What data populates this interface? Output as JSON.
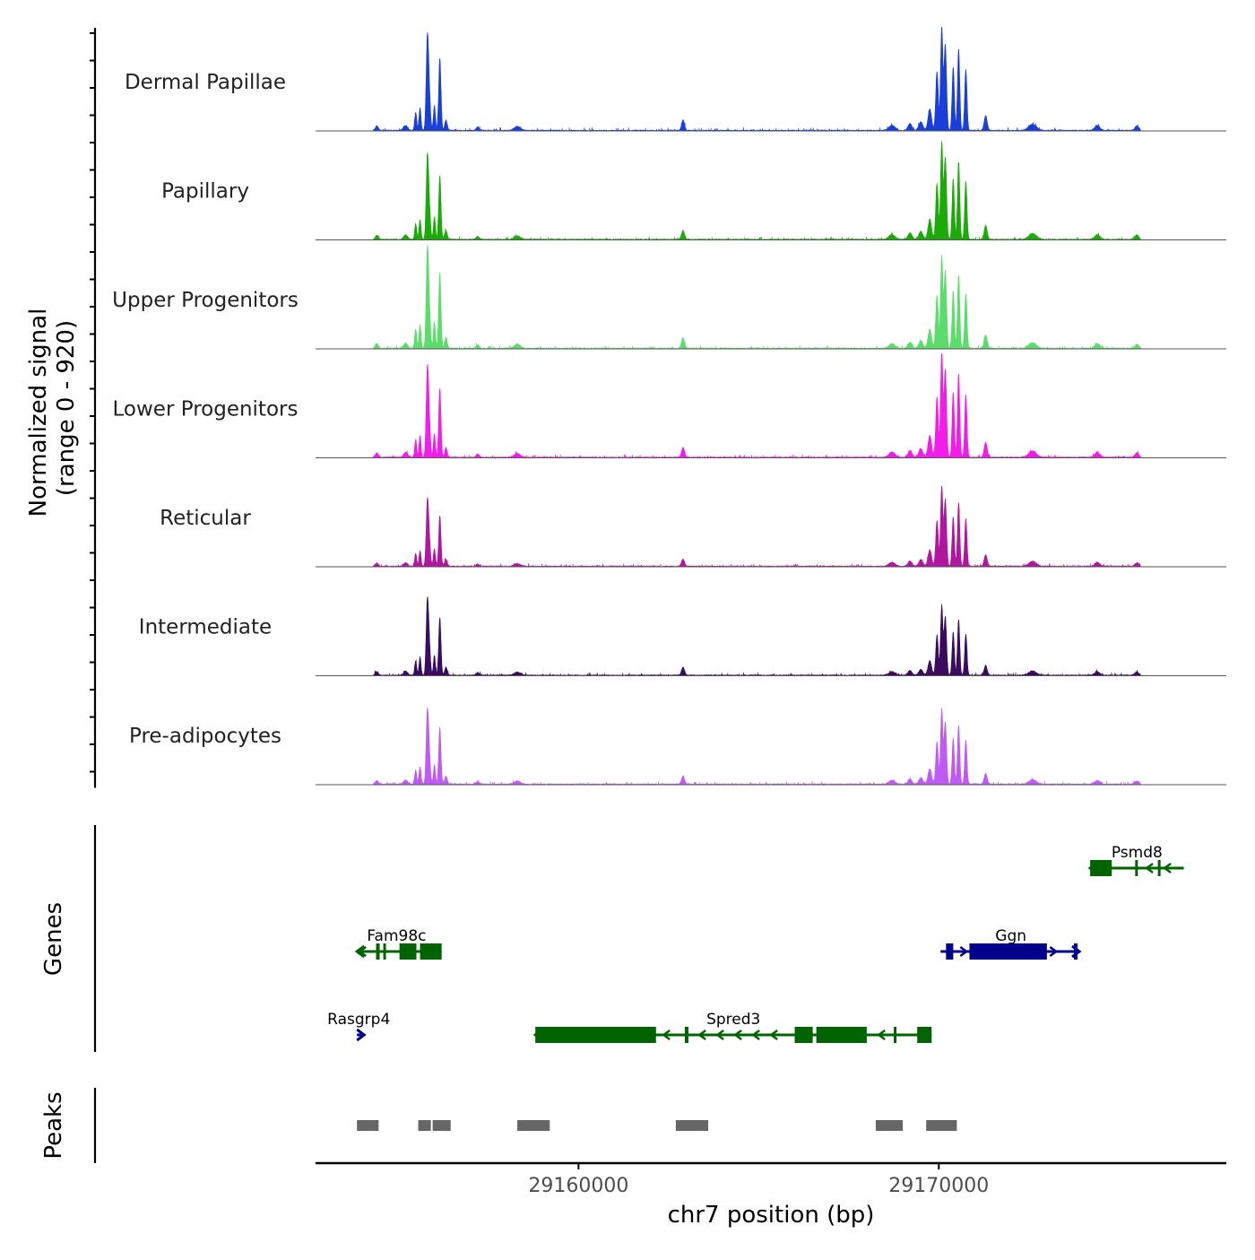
{
  "chart_data": {
    "type": "area",
    "title": "",
    "chromosome": "chr7",
    "xlabel": "chr7 position (bp)",
    "xlim": [
      29152700,
      29177980
    ],
    "x_ticks": [
      29160000,
      29170000
    ],
    "x_tick_labels": [
      "29160000",
      "29170000"
    ],
    "coverage": {
      "ylabel_line1": "Normalized signal",
      "ylabel_line2": "(range 0 - 920)",
      "ylim": [
        0,
        920
      ],
      "tracks": [
        {
          "name": "Dermal Papillae",
          "color": "#1A3FD9"
        },
        {
          "name": "Papillary",
          "color": "#1BAA08"
        },
        {
          "name": "Upper Progenitors",
          "color": "#5CDD6B"
        },
        {
          "name": "Lower Progenitors",
          "color": "#F21DE8"
        },
        {
          "name": "Reticular",
          "color": "#B0169E"
        },
        {
          "name": "Intermediate",
          "color": "#3A0B5E"
        },
        {
          "name": "Pre-adipocytes",
          "color": "#C05AF5"
        }
      ],
      "peak_profile": {
        "x": [
          29154400,
          29155200,
          29155480,
          29155600,
          29155800,
          29155850,
          29156000,
          29156150,
          29156320,
          29157200,
          29158300,
          29162900,
          29168700,
          29169200,
          29169500,
          29169750,
          29169950,
          29170080,
          29170180,
          29170400,
          29170550,
          29170750,
          29171300,
          29172600,
          29174400,
          29175500
        ],
        "values": [
          40,
          45,
          160,
          200,
          720,
          350,
          220,
          640,
          90,
          30,
          35,
          90,
          45,
          60,
          75,
          190,
          520,
          900,
          760,
          560,
          720,
          540,
          130,
          55,
          45,
          40
        ],
        "widths": [
          60,
          80,
          40,
          40,
          45,
          50,
          40,
          45,
          50,
          60,
          120,
          60,
          120,
          80,
          80,
          70,
          50,
          45,
          50,
          45,
          45,
          45,
          60,
          150,
          100,
          80
        ]
      },
      "track_scales": [
        {
          "left": 1.0,
          "right": 1.0
        },
        {
          "left": 0.88,
          "right": 0.95
        },
        {
          "left": 1.05,
          "right": 0.9
        },
        {
          "left": 0.95,
          "right": 1.02
        },
        {
          "left": 0.7,
          "right": 0.78
        },
        {
          "left": 0.8,
          "right": 0.68
        },
        {
          "left": 0.78,
          "right": 0.72
        }
      ]
    },
    "genes": {
      "ylabel": "Genes",
      "items": [
        {
          "name": "Psmd8",
          "strand": "-",
          "row": 0,
          "start": 29174200,
          "end": 29176800,
          "color": "#006400",
          "exons": [
            [
              29174200,
              29174800
            ],
            [
              29175450,
              29175510
            ],
            [
              29176080,
              29176130
            ]
          ],
          "label_at": 29175500
        },
        {
          "name": "Fam98c",
          "strand": "-",
          "row": 1,
          "start": 29153850,
          "end": 29156200,
          "color": "#006400",
          "exons": [
            [
              29154380,
              29154480
            ],
            [
              29154580,
              29154640
            ],
            [
              29155030,
              29155500
            ],
            [
              29155600,
              29156200
            ]
          ],
          "label_at": 29154950
        },
        {
          "name": "Ggn",
          "strand": "+",
          "row": 1,
          "start": 29170050,
          "end": 29173850,
          "color": "#00008B",
          "exons": [
            [
              29170200,
              29170400
            ],
            [
              29170850,
              29173000
            ],
            [
              29173750,
              29173850
            ]
          ],
          "label_at": 29172000
        },
        {
          "name": "Rasgrp4",
          "strand": "+",
          "row": 2,
          "start": 29153850,
          "end": 29154000,
          "color": "#00008B",
          "exons": [],
          "label_at": 29153900
        },
        {
          "name": "Spred3",
          "strand": "-",
          "row": 2,
          "start": 29158800,
          "end": 29169800,
          "color": "#006400",
          "exons": [
            [
              29158800,
              29162150
            ],
            [
              29162950,
              29163050
            ],
            [
              29166000,
              29166500
            ],
            [
              29166600,
              29168000
            ],
            [
              29168750,
              29168820
            ],
            [
              29169400,
              29169800
            ]
          ],
          "label_at": 29164300
        }
      ]
    },
    "peaks": {
      "ylabel": "Peaks",
      "color": "#666666",
      "intervals": [
        [
          29153850,
          29154450
        ],
        [
          29155550,
          29155900
        ],
        [
          29155950,
          29156450
        ],
        [
          29158300,
          29159200
        ],
        [
          29162700,
          29163600
        ],
        [
          29168250,
          29169000
        ],
        [
          29169650,
          29170500
        ]
      ]
    }
  }
}
